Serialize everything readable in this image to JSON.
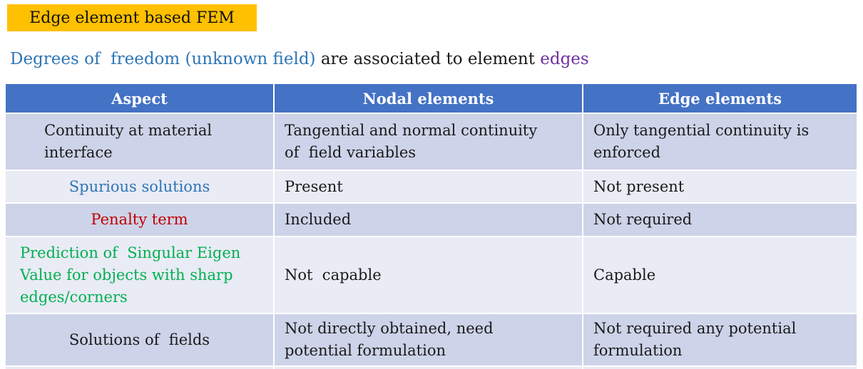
{
  "title_box": {
    "label": "Edge element based FEM",
    "bg": "#FFC000"
  },
  "subtitle": {
    "part1": "Degrees of  freedom (unknown field)",
    "part2": " are associated to element ",
    "part3": "edges",
    "part1_color": "#2E75B6",
    "part2_color": "#1A1A1A",
    "part3_color": "#7030A0"
  },
  "table": {
    "headers": [
      "Aspect",
      "Nodal elements",
      "Edge elements"
    ],
    "rows": [
      {
        "aspect": "Continuity at material\ninterface",
        "aspect_color": "#1A1A1A",
        "nodal": "Tangential and normal continuity\nof  field variables",
        "edge": "Only tangential continuity is\nenforced"
      },
      {
        "aspect": "Spurious solutions",
        "aspect_color": "#2E75B6",
        "nodal": "Present",
        "edge": "Not present"
      },
      {
        "aspect": "Penalty term",
        "aspect_color": "#C00000",
        "nodal": "Included",
        "edge": "Not required"
      },
      {
        "aspect": "Prediction of  Singular Eigen\nValue for objects with sharp\nedges/corners",
        "aspect_color": "#00B050",
        "nodal": "Not  capable",
        "edge": "Capable"
      },
      {
        "aspect": "Solutions of  fields",
        "aspect_color": "#1A1A1A",
        "nodal": "Not directly obtained, need\npotential formulation",
        "edge": "Not required any potential\nformulation"
      }
    ],
    "colors": {
      "header_bg": "#4472C4",
      "header_text": "#FFFFFF",
      "band_dark": "#CDD3E8",
      "band_light": "#E9EBF5"
    }
  }
}
